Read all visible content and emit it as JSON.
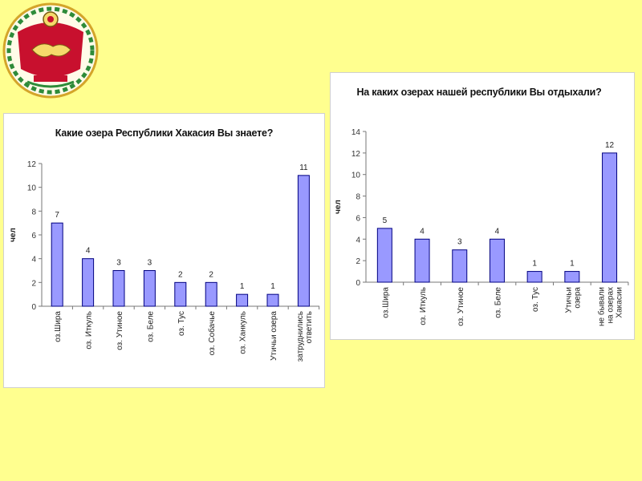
{
  "emblem": {
    "name": "republic-of-khakassia-coat-of-arms"
  },
  "colors": {
    "background": "#ffff8f",
    "bar_fill": "#9999ff",
    "bar_stroke": "#000080"
  },
  "chart_data": [
    {
      "type": "bar",
      "title": "Какие озера Республики Хакасия Вы знаете?",
      "ylabel": "чел",
      "xlabel": "",
      "ylim": [
        0,
        12
      ],
      "yticks": [
        0,
        2,
        4,
        6,
        8,
        10,
        12
      ],
      "grid": false,
      "legend": "none",
      "categories": [
        [
          "оз.Шира"
        ],
        [
          "оз. Иткуль"
        ],
        [
          "оз. Утиное"
        ],
        [
          "оз. Беле"
        ],
        [
          "оз. Тус"
        ],
        [
          "оз. Собачье"
        ],
        [
          "оз. Ханкуль"
        ],
        [
          "Утичьи озера"
        ],
        [
          "затруднились",
          "ответить"
        ]
      ],
      "values": [
        7,
        4,
        3,
        3,
        2,
        2,
        1,
        1,
        11
      ]
    },
    {
      "type": "bar",
      "title": "На каких озерах нашей республики Вы отдыхали?",
      "ylabel": "чел",
      "xlabel": "",
      "ylim": [
        0,
        14
      ],
      "yticks": [
        0,
        2,
        4,
        6,
        8,
        10,
        12,
        14
      ],
      "grid": false,
      "legend": "none",
      "categories": [
        [
          "оз.Шира"
        ],
        [
          "оз. Иткуль"
        ],
        [
          "оз. Утиное"
        ],
        [
          "оз. Беле"
        ],
        [
          "оз. Тус"
        ],
        [
          "Утичьи",
          "озера"
        ],
        [
          "не бывали",
          "на озерах",
          "Хакасии"
        ]
      ],
      "values": [
        5,
        4,
        3,
        4,
        1,
        1,
        12
      ]
    }
  ]
}
